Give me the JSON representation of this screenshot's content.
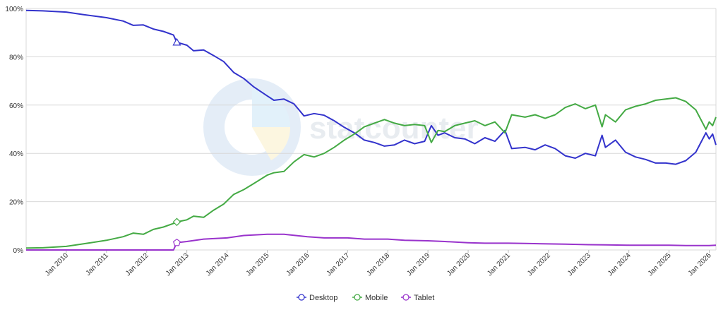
{
  "chart_data": {
    "type": "line",
    "title": "",
    "xlabel": "",
    "ylabel": "",
    "ylim": [
      0,
      100
    ],
    "yticks": [
      "0%",
      "20%",
      "40%",
      "60%",
      "80%",
      "100%"
    ],
    "xticks": [
      "Jan 2010",
      "Jan 2011",
      "Jan 2012",
      "Jan 2013",
      "Jan 2014",
      "Jan 2015",
      "Jan 2016",
      "Jan 2017",
      "Jan 2018",
      "Jan 2019",
      "Jan 2020",
      "Jan 2021",
      "Jan 2022",
      "Jan 2023",
      "Jan 2024",
      "Jan 2025",
      "Jan 2026"
    ],
    "xrange": [
      "2009-01",
      "2026-03"
    ],
    "grid": "horizontal",
    "legend_position": "bottom-center",
    "watermark": "statcounter",
    "series": [
      {
        "name": "Desktop",
        "color": "#3333cc",
        "points": [
          [
            "2009-01",
            99.2
          ],
          [
            "2009-06",
            99.0
          ],
          [
            "2010-01",
            98.5
          ],
          [
            "2010-06",
            97.5
          ],
          [
            "2011-01",
            96.2
          ],
          [
            "2011-06",
            94.8
          ],
          [
            "2011-09",
            93.0
          ],
          [
            "2011-12",
            93.2
          ],
          [
            "2012-03",
            91.5
          ],
          [
            "2012-06",
            90.5
          ],
          [
            "2012-09",
            89.0
          ],
          [
            "2012-10",
            86.0
          ],
          [
            "2013-01",
            84.8
          ],
          [
            "2013-03",
            82.5
          ],
          [
            "2013-06",
            82.8
          ],
          [
            "2013-09",
            80.5
          ],
          [
            "2013-12",
            78.0
          ],
          [
            "2014-03",
            73.5
          ],
          [
            "2014-06",
            71.0
          ],
          [
            "2014-09",
            67.5
          ],
          [
            "2015-01",
            63.8
          ],
          [
            "2015-03",
            62.0
          ],
          [
            "2015-06",
            62.5
          ],
          [
            "2015-09",
            60.5
          ],
          [
            "2015-12",
            55.5
          ],
          [
            "2016-03",
            56.5
          ],
          [
            "2016-06",
            55.8
          ],
          [
            "2016-09",
            53.5
          ],
          [
            "2016-12",
            50.8
          ],
          [
            "2017-03",
            48.5
          ],
          [
            "2017-06",
            45.5
          ],
          [
            "2017-09",
            44.5
          ],
          [
            "2017-12",
            43.0
          ],
          [
            "2018-03",
            43.5
          ],
          [
            "2018-06",
            45.5
          ],
          [
            "2018-09",
            44.0
          ],
          [
            "2018-12",
            45.0
          ],
          [
            "2019-02",
            51.5
          ],
          [
            "2019-04",
            47.5
          ],
          [
            "2019-06",
            48.5
          ],
          [
            "2019-09",
            46.5
          ],
          [
            "2019-12",
            46.0
          ],
          [
            "2020-03",
            44.0
          ],
          [
            "2020-06",
            46.5
          ],
          [
            "2020-09",
            45.0
          ],
          [
            "2020-12",
            49.5
          ],
          [
            "2021-02",
            42.0
          ],
          [
            "2021-06",
            42.5
          ],
          [
            "2021-09",
            41.5
          ],
          [
            "2021-12",
            43.5
          ],
          [
            "2022-03",
            42.0
          ],
          [
            "2022-06",
            39.0
          ],
          [
            "2022-09",
            38.0
          ],
          [
            "2022-12",
            40.0
          ],
          [
            "2023-03",
            39.0
          ],
          [
            "2023-05",
            47.5
          ],
          [
            "2023-06",
            42.5
          ],
          [
            "2023-09",
            45.5
          ],
          [
            "2023-12",
            40.5
          ],
          [
            "2024-03",
            38.5
          ],
          [
            "2024-06",
            37.5
          ],
          [
            "2024-09",
            36.0
          ],
          [
            "2024-12",
            36.0
          ],
          [
            "2025-03",
            35.5
          ],
          [
            "2025-06",
            37.0
          ],
          [
            "2025-09",
            40.5
          ],
          [
            "2025-12",
            48.5
          ],
          [
            "2026-01",
            46.0
          ],
          [
            "2026-02",
            48.0
          ],
          [
            "2026-03",
            43.5
          ]
        ]
      },
      {
        "name": "Mobile",
        "color": "#44aa44",
        "points": [
          [
            "2009-01",
            0.8
          ],
          [
            "2009-06",
            0.9
          ],
          [
            "2010-01",
            1.5
          ],
          [
            "2010-06",
            2.5
          ],
          [
            "2011-01",
            4.0
          ],
          [
            "2011-06",
            5.5
          ],
          [
            "2011-09",
            7.0
          ],
          [
            "2011-12",
            6.5
          ],
          [
            "2012-03",
            8.5
          ],
          [
            "2012-06",
            9.5
          ],
          [
            "2012-09",
            11.0
          ],
          [
            "2012-10",
            11.6
          ],
          [
            "2013-01",
            12.5
          ],
          [
            "2013-03",
            14.0
          ],
          [
            "2013-06",
            13.5
          ],
          [
            "2013-09",
            16.5
          ],
          [
            "2013-12",
            19.0
          ],
          [
            "2014-03",
            23.0
          ],
          [
            "2014-06",
            25.0
          ],
          [
            "2014-09",
            27.5
          ],
          [
            "2015-01",
            31.0
          ],
          [
            "2015-03",
            32.0
          ],
          [
            "2015-06",
            32.5
          ],
          [
            "2015-09",
            36.5
          ],
          [
            "2015-12",
            39.5
          ],
          [
            "2016-03",
            38.5
          ],
          [
            "2016-06",
            40.0
          ],
          [
            "2016-09",
            42.5
          ],
          [
            "2016-12",
            45.5
          ],
          [
            "2017-03",
            48.0
          ],
          [
            "2017-06",
            51.0
          ],
          [
            "2017-09",
            52.5
          ],
          [
            "2017-12",
            54.0
          ],
          [
            "2018-03",
            52.5
          ],
          [
            "2018-06",
            51.5
          ],
          [
            "2018-09",
            52.0
          ],
          [
            "2018-12",
            51.5
          ],
          [
            "2019-02",
            44.5
          ],
          [
            "2019-04",
            49.5
          ],
          [
            "2019-06",
            49.0
          ],
          [
            "2019-09",
            51.5
          ],
          [
            "2019-12",
            52.5
          ],
          [
            "2020-03",
            53.5
          ],
          [
            "2020-06",
            51.5
          ],
          [
            "2020-09",
            53.0
          ],
          [
            "2020-12",
            48.5
          ],
          [
            "2021-02",
            56.0
          ],
          [
            "2021-06",
            55.0
          ],
          [
            "2021-09",
            56.0
          ],
          [
            "2021-12",
            54.5
          ],
          [
            "2022-03",
            56.0
          ],
          [
            "2022-06",
            59.0
          ],
          [
            "2022-09",
            60.5
          ],
          [
            "2022-12",
            58.5
          ],
          [
            "2023-03",
            60.0
          ],
          [
            "2023-05",
            51.0
          ],
          [
            "2023-06",
            56.0
          ],
          [
            "2023-09",
            53.0
          ],
          [
            "2023-12",
            58.0
          ],
          [
            "2024-03",
            59.5
          ],
          [
            "2024-06",
            60.5
          ],
          [
            "2024-09",
            62.0
          ],
          [
            "2024-12",
            62.5
          ],
          [
            "2025-03",
            63.0
          ],
          [
            "2025-06",
            61.5
          ],
          [
            "2025-09",
            58.0
          ],
          [
            "2025-12",
            50.0
          ],
          [
            "2026-01",
            53.0
          ],
          [
            "2026-02",
            51.5
          ],
          [
            "2026-03",
            55.0
          ]
        ]
      },
      {
        "name": "Tablet",
        "color": "#9933cc",
        "points": [
          [
            "2009-01",
            0.0
          ],
          [
            "2010-01",
            0.0
          ],
          [
            "2011-01",
            0.0
          ],
          [
            "2012-01",
            0.0
          ],
          [
            "2012-09",
            0.0
          ],
          [
            "2012-10",
            3.0
          ],
          [
            "2013-01",
            3.5
          ],
          [
            "2013-06",
            4.5
          ],
          [
            "2014-01",
            5.0
          ],
          [
            "2014-06",
            6.0
          ],
          [
            "2015-01",
            6.5
          ],
          [
            "2015-06",
            6.5
          ],
          [
            "2016-01",
            5.5
          ],
          [
            "2016-06",
            5.0
          ],
          [
            "2017-01",
            5.0
          ],
          [
            "2017-06",
            4.5
          ],
          [
            "2018-01",
            4.5
          ],
          [
            "2018-06",
            4.0
          ],
          [
            "2019-01",
            3.8
          ],
          [
            "2019-06",
            3.5
          ],
          [
            "2020-01",
            3.0
          ],
          [
            "2020-06",
            2.8
          ],
          [
            "2021-01",
            2.8
          ],
          [
            "2021-06",
            2.7
          ],
          [
            "2022-01",
            2.5
          ],
          [
            "2022-06",
            2.4
          ],
          [
            "2023-01",
            2.2
          ],
          [
            "2023-06",
            2.1
          ],
          [
            "2024-01",
            2.0
          ],
          [
            "2024-06",
            2.0
          ],
          [
            "2025-01",
            2.0
          ],
          [
            "2025-06",
            1.8
          ],
          [
            "2026-01",
            1.8
          ],
          [
            "2026-03",
            2.0
          ]
        ]
      }
    ]
  }
}
